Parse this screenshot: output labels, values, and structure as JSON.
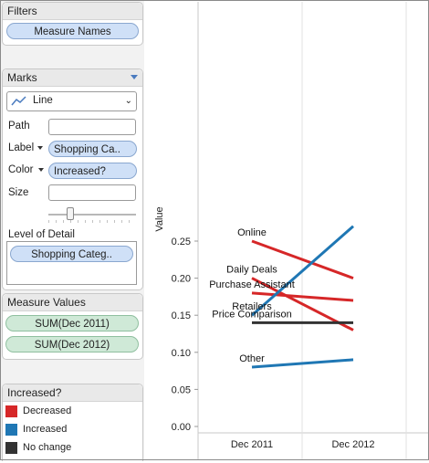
{
  "filters": {
    "title": "Filters",
    "pill": "Measure Names"
  },
  "marks": {
    "title": "Marks",
    "mark_type": "Line",
    "path_label": "Path",
    "label_label": "Label",
    "label_value": "Shopping Ca..",
    "color_label": "Color",
    "color_value": "Increased?",
    "size_label": "Size",
    "lod_label": "Level of Detail",
    "lod_value": "Shopping Categ.."
  },
  "measure_values": {
    "title": "Measure Values",
    "items": [
      "SUM(Dec 2011)",
      "SUM(Dec 2012)"
    ]
  },
  "legend": {
    "title": "Increased?",
    "items": [
      {
        "label": "Decreased",
        "color": "#d62728"
      },
      {
        "label": "Increased",
        "color": "#1f77b4"
      },
      {
        "label": "No change",
        "color": "#333333"
      }
    ]
  },
  "chart_data": {
    "type": "line",
    "x": [
      "Dec 2011",
      "Dec 2012"
    ],
    "ylabel": "Value",
    "ylim": [
      0,
      0.27
    ],
    "yticks": [
      "0.00",
      "0.05",
      "0.10",
      "0.15",
      "0.20",
      "0.25"
    ],
    "series": [
      {
        "name": "Online",
        "values": [
          0.25,
          0.2
        ],
        "color": "#d62728"
      },
      {
        "name": "Daily Deals",
        "values": [
          0.2,
          0.13
        ],
        "color": "#d62728"
      },
      {
        "name": "Purchase Assistant",
        "values": [
          0.18,
          0.17
        ],
        "color": "#d62728"
      },
      {
        "name": "Retailers",
        "values": [
          0.15,
          0.27
        ],
        "color": "#1f77b4"
      },
      {
        "name": "Price Comparison",
        "values": [
          0.14,
          0.14
        ],
        "color": "#333333"
      },
      {
        "name": "Other",
        "values": [
          0.08,
          0.09
        ],
        "color": "#1f77b4"
      }
    ]
  }
}
